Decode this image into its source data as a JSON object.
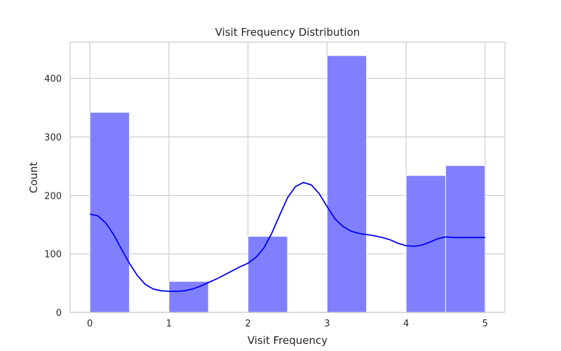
{
  "chart_data": {
    "type": "bar",
    "title": "Visit Frequency Distribution",
    "xlabel": "Visit Frequency",
    "ylabel": "Count",
    "xlim": [
      -0.25,
      5.25
    ],
    "ylim": [
      0,
      462
    ],
    "grid": true,
    "x_ticks": [
      0,
      1,
      2,
      3,
      4,
      5
    ],
    "y_ticks": [
      0,
      100,
      200,
      300,
      400
    ],
    "bar_color": "#8080ff",
    "bar_edge_color": "#ffffff",
    "line_color": "#0000ff",
    "bins": [
      {
        "x0": 0.0,
        "x1": 0.5,
        "count": 342
      },
      {
        "x0": 0.5,
        "x1": 1.0,
        "count": 0
      },
      {
        "x0": 1.0,
        "x1": 1.5,
        "count": 53
      },
      {
        "x0": 1.5,
        "x1": 2.0,
        "count": 0
      },
      {
        "x0": 2.0,
        "x1": 2.5,
        "count": 130
      },
      {
        "x0": 2.5,
        "x1": 3.0,
        "count": 0
      },
      {
        "x0": 3.0,
        "x1": 3.5,
        "count": 439
      },
      {
        "x0": 3.5,
        "x1": 4.0,
        "count": 0
      },
      {
        "x0": 4.0,
        "x1": 4.5,
        "count": 234
      },
      {
        "x0": 4.5,
        "x1": 5.0,
        "count": 251
      }
    ],
    "kde": {
      "x": [
        0.0,
        0.1,
        0.2,
        0.3,
        0.4,
        0.5,
        0.6,
        0.7,
        0.8,
        0.9,
        1.0,
        1.1,
        1.2,
        1.3,
        1.4,
        1.5,
        1.6,
        1.7,
        1.8,
        1.9,
        2.0,
        2.1,
        2.2,
        2.3,
        2.4,
        2.5,
        2.6,
        2.7,
        2.8,
        2.9,
        3.0,
        3.1,
        3.2,
        3.3,
        3.4,
        3.5,
        3.6,
        3.7,
        3.8,
        3.9,
        4.0,
        4.1,
        4.2,
        4.3,
        4.4,
        4.5,
        4.6,
        4.7,
        4.8,
        4.9,
        5.0
      ],
      "y": [
        168,
        165,
        153,
        133,
        108,
        84,
        63,
        48,
        40,
        37,
        36,
        36,
        37,
        40,
        45,
        51,
        57,
        64,
        71,
        78,
        84,
        94,
        110,
        135,
        166,
        196,
        215,
        222,
        218,
        203,
        181,
        160,
        147,
        139,
        135,
        133,
        131,
        128,
        124,
        118,
        114,
        113,
        115,
        120,
        126,
        129,
        128,
        128,
        128,
        128,
        128
      ]
    }
  }
}
